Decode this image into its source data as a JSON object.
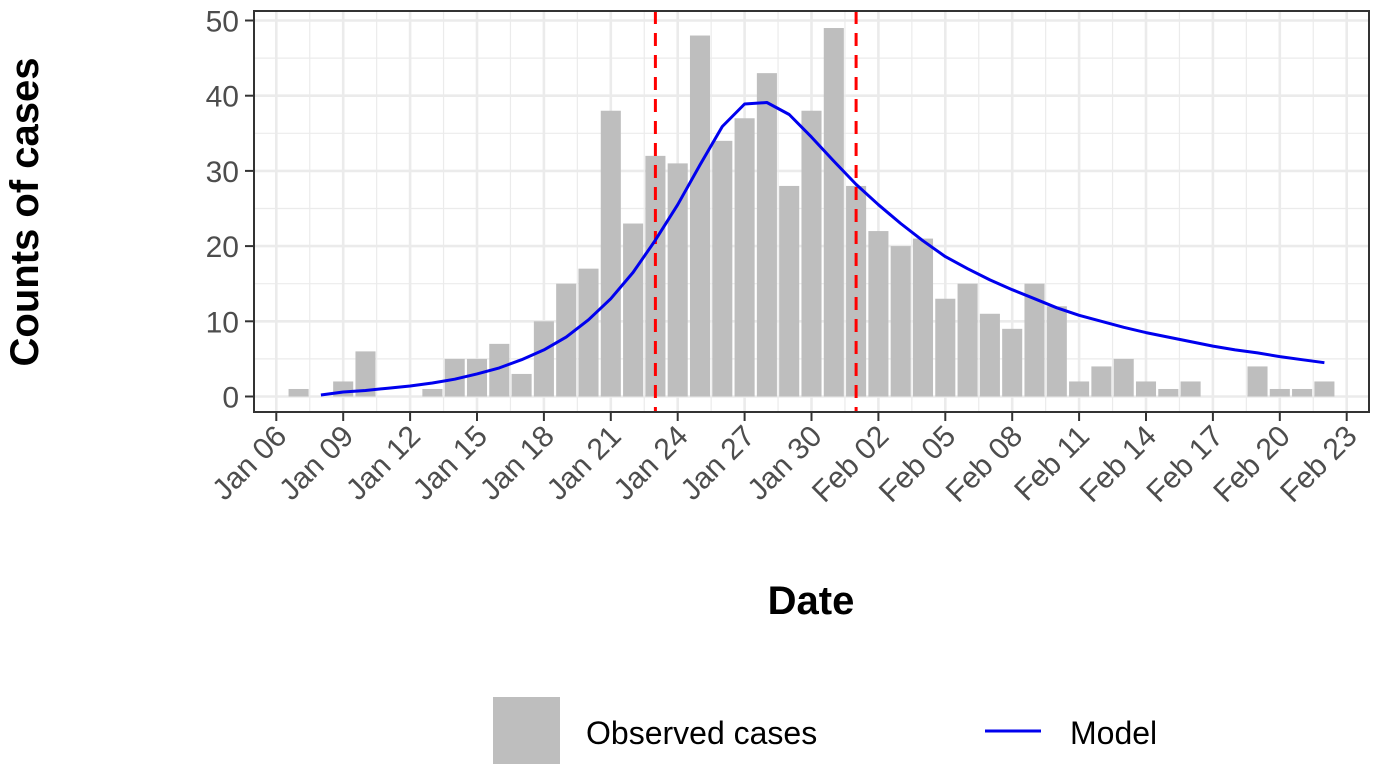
{
  "chart_data": {
    "type": "bar",
    "xlabel": "Date",
    "ylabel": "Counts of cases",
    "ylim": [
      0,
      50
    ],
    "y_ticks": [
      0,
      10,
      20,
      30,
      40,
      50
    ],
    "x_range": [
      "2020-01-05",
      "2020-02-24"
    ],
    "x_ticks": [
      {
        "date": "2020-01-06",
        "label": "Jan 06"
      },
      {
        "date": "2020-01-09",
        "label": "Jan 09"
      },
      {
        "date": "2020-01-12",
        "label": "Jan 12"
      },
      {
        "date": "2020-01-15",
        "label": "Jan 15"
      },
      {
        "date": "2020-01-18",
        "label": "Jan 18"
      },
      {
        "date": "2020-01-21",
        "label": "Jan 21"
      },
      {
        "date": "2020-01-24",
        "label": "Jan 24"
      },
      {
        "date": "2020-01-27",
        "label": "Jan 27"
      },
      {
        "date": "2020-01-30",
        "label": "Jan 30"
      },
      {
        "date": "2020-02-02",
        "label": "Feb 02"
      },
      {
        "date": "2020-02-05",
        "label": "Feb 05"
      },
      {
        "date": "2020-02-08",
        "label": "Feb 08"
      },
      {
        "date": "2020-02-11",
        "label": "Feb 11"
      },
      {
        "date": "2020-02-14",
        "label": "Feb 14"
      },
      {
        "date": "2020-02-17",
        "label": "Feb 17"
      },
      {
        "date": "2020-02-20",
        "label": "Feb 20"
      },
      {
        "date": "2020-02-23",
        "label": "Feb 23"
      }
    ],
    "grid": true,
    "legend_position": "bottom",
    "series": [
      {
        "name": "Observed cases",
        "type": "bar",
        "color": "#bebebe",
        "points": [
          {
            "x": "2020-01-07",
            "y": 1
          },
          {
            "x": "2020-01-09",
            "y": 2
          },
          {
            "x": "2020-01-10",
            "y": 6
          },
          {
            "x": "2020-01-13",
            "y": 1
          },
          {
            "x": "2020-01-14",
            "y": 5
          },
          {
            "x": "2020-01-15",
            "y": 5
          },
          {
            "x": "2020-01-16",
            "y": 7
          },
          {
            "x": "2020-01-17",
            "y": 3
          },
          {
            "x": "2020-01-18",
            "y": 10
          },
          {
            "x": "2020-01-19",
            "y": 15
          },
          {
            "x": "2020-01-20",
            "y": 17
          },
          {
            "x": "2020-01-21",
            "y": 38
          },
          {
            "x": "2020-01-22",
            "y": 23
          },
          {
            "x": "2020-01-23",
            "y": 32
          },
          {
            "x": "2020-01-24",
            "y": 31
          },
          {
            "x": "2020-01-25",
            "y": 48
          },
          {
            "x": "2020-01-26",
            "y": 34
          },
          {
            "x": "2020-01-27",
            "y": 37
          },
          {
            "x": "2020-01-28",
            "y": 43
          },
          {
            "x": "2020-01-29",
            "y": 28
          },
          {
            "x": "2020-01-30",
            "y": 38
          },
          {
            "x": "2020-01-31",
            "y": 49
          },
          {
            "x": "2020-02-01",
            "y": 28
          },
          {
            "x": "2020-02-02",
            "y": 22
          },
          {
            "x": "2020-02-03",
            "y": 20
          },
          {
            "x": "2020-02-04",
            "y": 21
          },
          {
            "x": "2020-02-05",
            "y": 13
          },
          {
            "x": "2020-02-06",
            "y": 15
          },
          {
            "x": "2020-02-07",
            "y": 11
          },
          {
            "x": "2020-02-08",
            "y": 9
          },
          {
            "x": "2020-02-09",
            "y": 15
          },
          {
            "x": "2020-02-10",
            "y": 12
          },
          {
            "x": "2020-02-11",
            "y": 2
          },
          {
            "x": "2020-02-12",
            "y": 4
          },
          {
            "x": "2020-02-13",
            "y": 5
          },
          {
            "x": "2020-02-14",
            "y": 2
          },
          {
            "x": "2020-02-15",
            "y": 1
          },
          {
            "x": "2020-02-16",
            "y": 2
          },
          {
            "x": "2020-02-19",
            "y": 4
          },
          {
            "x": "2020-02-20",
            "y": 1
          },
          {
            "x": "2020-02-21",
            "y": 1
          },
          {
            "x": "2020-02-22",
            "y": 2
          }
        ]
      },
      {
        "name": "Model",
        "type": "line",
        "color": "#0000ee",
        "points": [
          {
            "x": "2020-01-08",
            "y": 0.2
          },
          {
            "x": "2020-01-09",
            "y": 0.6
          },
          {
            "x": "2020-01-10",
            "y": 0.8
          },
          {
            "x": "2020-01-11",
            "y": 1.1
          },
          {
            "x": "2020-01-12",
            "y": 1.4
          },
          {
            "x": "2020-01-13",
            "y": 1.8
          },
          {
            "x": "2020-01-14",
            "y": 2.3
          },
          {
            "x": "2020-01-15",
            "y": 3.0
          },
          {
            "x": "2020-01-16",
            "y": 3.8
          },
          {
            "x": "2020-01-17",
            "y": 4.9
          },
          {
            "x": "2020-01-18",
            "y": 6.2
          },
          {
            "x": "2020-01-19",
            "y": 7.9
          },
          {
            "x": "2020-01-20",
            "y": 10.2
          },
          {
            "x": "2020-01-21",
            "y": 13.0
          },
          {
            "x": "2020-01-22",
            "y": 16.5
          },
          {
            "x": "2020-01-23",
            "y": 20.8
          },
          {
            "x": "2020-01-24",
            "y": 25.5
          },
          {
            "x": "2020-01-25",
            "y": 30.8
          },
          {
            "x": "2020-01-26",
            "y": 35.9
          },
          {
            "x": "2020-01-27",
            "y": 38.9
          },
          {
            "x": "2020-01-28",
            "y": 39.1
          },
          {
            "x": "2020-01-29",
            "y": 37.5
          },
          {
            "x": "2020-01-30",
            "y": 34.5
          },
          {
            "x": "2020-01-31",
            "y": 31.3
          },
          {
            "x": "2020-02-01",
            "y": 28.2
          },
          {
            "x": "2020-02-02",
            "y": 25.5
          },
          {
            "x": "2020-02-03",
            "y": 23.0
          },
          {
            "x": "2020-02-04",
            "y": 20.7
          },
          {
            "x": "2020-02-05",
            "y": 18.6
          },
          {
            "x": "2020-02-06",
            "y": 17.0
          },
          {
            "x": "2020-02-07",
            "y": 15.5
          },
          {
            "x": "2020-02-08",
            "y": 14.2
          },
          {
            "x": "2020-02-09",
            "y": 13.0
          },
          {
            "x": "2020-02-10",
            "y": 11.8
          },
          {
            "x": "2020-02-11",
            "y": 10.8
          },
          {
            "x": "2020-02-12",
            "y": 10.0
          },
          {
            "x": "2020-02-13",
            "y": 9.2
          },
          {
            "x": "2020-02-14",
            "y": 8.5
          },
          {
            "x": "2020-02-15",
            "y": 7.9
          },
          {
            "x": "2020-02-16",
            "y": 7.3
          },
          {
            "x": "2020-02-17",
            "y": 6.7
          },
          {
            "x": "2020-02-18",
            "y": 6.2
          },
          {
            "x": "2020-02-19",
            "y": 5.8
          },
          {
            "x": "2020-02-20",
            "y": 5.3
          },
          {
            "x": "2020-02-21",
            "y": 4.9
          },
          {
            "x": "2020-02-22",
            "y": 4.5
          }
        ]
      }
    ],
    "vertical_lines": [
      {
        "x": "2020-01-23",
        "color": "#ff0000",
        "style": "dashed"
      },
      {
        "x": "2020-02-01",
        "color": "#ff0000",
        "style": "dashed"
      }
    ]
  }
}
